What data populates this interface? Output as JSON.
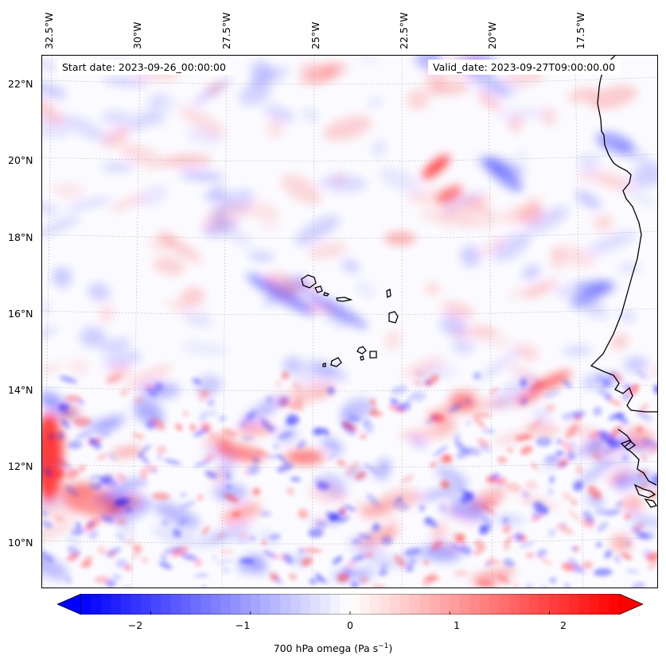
{
  "map": {
    "start_date": "Start date: 2023-09-26_00:00:00",
    "valid_date": "Valid_date: 2023-09-27T09:00:00.00",
    "lon_labels": [
      "32.5°W",
      "30°W",
      "27.5°W",
      "25°W",
      "22.5°W",
      "20°W",
      "17.5°W"
    ],
    "lat_labels": [
      "22°N",
      "20°N",
      "18°N",
      "16°N",
      "14°N",
      "12°N",
      "10°N"
    ],
    "colors": {
      "negative": "#0000ff",
      "neutral": "#ffffff",
      "positive": "#ff0000",
      "coast": "#000000"
    }
  },
  "colorbar": {
    "ticks": [
      "−2",
      "−1",
      "0",
      "1",
      "2"
    ],
    "label": "700 hPa omega (Pa s",
    "label_sup": "−1",
    "label_end": ")",
    "vmin": -2.7,
    "vmax": 2.7
  }
}
